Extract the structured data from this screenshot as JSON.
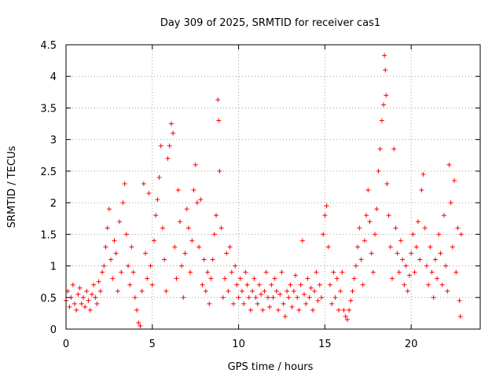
{
  "chart_data": {
    "type": "scatter",
    "title": "Day 309 of 2025, SRMTID for receiver cas1",
    "xlabel": "GPS time / hours",
    "ylabel": "SRMTID / TECUs",
    "xlim": [
      0,
      24
    ],
    "ylim": [
      0,
      4.5
    ],
    "xticks": [
      0,
      5,
      10,
      15,
      20
    ],
    "yticks": [
      0,
      0.5,
      1,
      1.5,
      2,
      2.5,
      3,
      3.5,
      4,
      4.5
    ],
    "grid": true,
    "marker": "+",
    "series": [
      {
        "name": "cas1",
        "color": "#ff0000",
        "points": [
          [
            0.0,
            0.45
          ],
          [
            0.1,
            0.6
          ],
          [
            0.2,
            0.35
          ],
          [
            0.3,
            0.5
          ],
          [
            0.4,
            0.7
          ],
          [
            0.5,
            0.4
          ],
          [
            0.6,
            0.3
          ],
          [
            0.7,
            0.55
          ],
          [
            0.8,
            0.65
          ],
          [
            0.9,
            0.4
          ],
          [
            1.0,
            0.5
          ],
          [
            1.1,
            0.35
          ],
          [
            1.2,
            0.6
          ],
          [
            1.3,
            0.45
          ],
          [
            1.4,
            0.3
          ],
          [
            1.5,
            0.55
          ],
          [
            1.6,
            0.7
          ],
          [
            1.7,
            0.5
          ],
          [
            1.8,
            0.4
          ],
          [
            1.9,
            0.75
          ],
          [
            2.0,
            0.6
          ],
          [
            2.1,
            0.9
          ],
          [
            2.2,
            1.0
          ],
          [
            2.3,
            1.3
          ],
          [
            2.4,
            1.6
          ],
          [
            2.5,
            1.9
          ],
          [
            2.6,
            1.1
          ],
          [
            2.7,
            0.8
          ],
          [
            2.8,
            1.4
          ],
          [
            2.9,
            1.2
          ],
          [
            3.0,
            0.6
          ],
          [
            3.1,
            1.7
          ],
          [
            3.2,
            0.9
          ],
          [
            3.3,
            2.0
          ],
          [
            3.4,
            2.3
          ],
          [
            3.5,
            1.5
          ],
          [
            3.6,
            1.0
          ],
          [
            3.7,
            0.7
          ],
          [
            3.8,
            1.3
          ],
          [
            3.9,
            0.9
          ],
          [
            4.0,
            0.5
          ],
          [
            4.1,
            0.3
          ],
          [
            4.2,
            0.1
          ],
          [
            4.3,
            0.05
          ],
          [
            4.4,
            0.6
          ],
          [
            4.5,
            2.3
          ],
          [
            4.6,
            1.2
          ],
          [
            4.7,
            0.8
          ],
          [
            4.8,
            2.15
          ],
          [
            4.9,
            1.0
          ],
          [
            5.0,
            0.7
          ],
          [
            5.1,
            1.4
          ],
          [
            5.2,
            1.8
          ],
          [
            5.3,
            2.05
          ],
          [
            5.4,
            2.4
          ],
          [
            5.5,
            2.9
          ],
          [
            5.6,
            1.6
          ],
          [
            5.7,
            1.1
          ],
          [
            5.8,
            0.6
          ],
          [
            5.9,
            2.7
          ],
          [
            6.0,
            2.9
          ],
          [
            6.1,
            3.25
          ],
          [
            6.2,
            3.1
          ],
          [
            6.3,
            1.3
          ],
          [
            6.4,
            0.8
          ],
          [
            6.5,
            2.2
          ],
          [
            6.6,
            1.7
          ],
          [
            6.7,
            1.0
          ],
          [
            6.8,
            0.5
          ],
          [
            6.9,
            1.2
          ],
          [
            7.0,
            1.9
          ],
          [
            7.1,
            1.6
          ],
          [
            7.2,
            0.9
          ],
          [
            7.3,
            1.4
          ],
          [
            7.4,
            2.2
          ],
          [
            7.5,
            2.6
          ],
          [
            7.6,
            2.0
          ],
          [
            7.7,
            1.3
          ],
          [
            7.8,
            2.05
          ],
          [
            7.9,
            0.7
          ],
          [
            8.0,
            1.1
          ],
          [
            8.1,
            0.6
          ],
          [
            8.2,
            0.9
          ],
          [
            8.3,
            0.4
          ],
          [
            8.4,
            0.8
          ],
          [
            8.5,
            1.1
          ],
          [
            8.6,
            1.5
          ],
          [
            8.7,
            1.8
          ],
          [
            8.8,
            3.63
          ],
          [
            8.85,
            3.3
          ],
          [
            8.9,
            2.5
          ],
          [
            9.0,
            1.6
          ],
          [
            9.1,
            0.5
          ],
          [
            9.2,
            0.8
          ],
          [
            9.3,
            1.2
          ],
          [
            9.4,
            0.6
          ],
          [
            9.5,
            1.3
          ],
          [
            9.6,
            0.9
          ],
          [
            9.7,
            0.4
          ],
          [
            9.8,
            1.0
          ],
          [
            9.9,
            0.7
          ],
          [
            10.0,
            0.5
          ],
          [
            10.1,
            0.8
          ],
          [
            10.2,
            0.6
          ],
          [
            10.3,
            0.4
          ],
          [
            10.4,
            0.9
          ],
          [
            10.5,
            0.7
          ],
          [
            10.6,
            0.5
          ],
          [
            10.7,
            0.3
          ],
          [
            10.8,
            0.6
          ],
          [
            10.9,
            0.8
          ],
          [
            11.0,
            0.5
          ],
          [
            11.1,
            0.4
          ],
          [
            11.2,
            0.7
          ],
          [
            11.3,
            0.55
          ],
          [
            11.4,
            0.3
          ],
          [
            11.5,
            0.6
          ],
          [
            11.6,
            0.9
          ],
          [
            11.7,
            0.5
          ],
          [
            11.8,
            0.35
          ],
          [
            11.9,
            0.7
          ],
          [
            12.0,
            0.5
          ],
          [
            12.1,
            0.8
          ],
          [
            12.2,
            0.6
          ],
          [
            12.3,
            0.3
          ],
          [
            12.4,
            0.55
          ],
          [
            12.5,
            0.9
          ],
          [
            12.6,
            0.4
          ],
          [
            12.7,
            0.2
          ],
          [
            12.8,
            0.6
          ],
          [
            12.9,
            0.5
          ],
          [
            13.0,
            0.7
          ],
          [
            13.1,
            0.35
          ],
          [
            13.2,
            0.6
          ],
          [
            13.3,
            0.85
          ],
          [
            13.4,
            0.5
          ],
          [
            13.5,
            0.3
          ],
          [
            13.6,
            0.7
          ],
          [
            13.7,
            1.4
          ],
          [
            13.8,
            0.55
          ],
          [
            13.9,
            0.4
          ],
          [
            14.0,
            0.8
          ],
          [
            14.1,
            0.5
          ],
          [
            14.2,
            0.65
          ],
          [
            14.3,
            0.3
          ],
          [
            14.4,
            0.6
          ],
          [
            14.5,
            0.9
          ],
          [
            14.6,
            0.45
          ],
          [
            14.7,
            0.7
          ],
          [
            14.8,
            0.5
          ],
          [
            14.9,
            1.5
          ],
          [
            15.0,
            1.8
          ],
          [
            15.1,
            1.95
          ],
          [
            15.2,
            1.3
          ],
          [
            15.3,
            0.7
          ],
          [
            15.4,
            0.4
          ],
          [
            15.5,
            0.9
          ],
          [
            15.6,
            0.5
          ],
          [
            15.7,
            0.8
          ],
          [
            15.8,
            0.3
          ],
          [
            15.9,
            0.6
          ],
          [
            16.0,
            0.9
          ],
          [
            16.1,
            0.3
          ],
          [
            16.2,
            0.2
          ],
          [
            16.3,
            0.15
          ],
          [
            16.4,
            0.3
          ],
          [
            16.5,
            0.45
          ],
          [
            16.6,
            0.6
          ],
          [
            16.7,
            0.8
          ],
          [
            16.8,
            1.0
          ],
          [
            16.9,
            1.3
          ],
          [
            17.0,
            1.6
          ],
          [
            17.1,
            1.1
          ],
          [
            17.2,
            0.7
          ],
          [
            17.3,
            1.4
          ],
          [
            17.4,
            1.8
          ],
          [
            17.5,
            2.2
          ],
          [
            17.6,
            1.7
          ],
          [
            17.7,
            1.2
          ],
          [
            17.8,
            0.9
          ],
          [
            17.9,
            1.5
          ],
          [
            18.0,
            1.9
          ],
          [
            18.1,
            2.5
          ],
          [
            18.2,
            2.85
          ],
          [
            18.3,
            3.3
          ],
          [
            18.4,
            3.55
          ],
          [
            18.45,
            4.33
          ],
          [
            18.5,
            4.1
          ],
          [
            18.55,
            3.7
          ],
          [
            18.6,
            2.3
          ],
          [
            18.7,
            1.8
          ],
          [
            18.8,
            1.3
          ],
          [
            18.9,
            0.8
          ],
          [
            19.0,
            2.85
          ],
          [
            19.1,
            1.6
          ],
          [
            19.2,
            1.2
          ],
          [
            19.3,
            0.9
          ],
          [
            19.4,
            1.4
          ],
          [
            19.5,
            1.1
          ],
          [
            19.6,
            0.7
          ],
          [
            19.7,
            1.0
          ],
          [
            19.8,
            0.6
          ],
          [
            19.9,
            0.85
          ],
          [
            20.0,
            1.2
          ],
          [
            20.1,
            1.5
          ],
          [
            20.2,
            0.9
          ],
          [
            20.3,
            1.3
          ],
          [
            20.4,
            1.7
          ],
          [
            20.5,
            1.1
          ],
          [
            20.6,
            2.2
          ],
          [
            20.7,
            2.45
          ],
          [
            20.8,
            1.6
          ],
          [
            20.9,
            1.0
          ],
          [
            21.0,
            0.7
          ],
          [
            21.1,
            1.3
          ],
          [
            21.2,
            0.9
          ],
          [
            21.3,
            0.5
          ],
          [
            21.4,
            1.1
          ],
          [
            21.5,
            0.8
          ],
          [
            21.6,
            1.5
          ],
          [
            21.7,
            1.2
          ],
          [
            21.8,
            0.7
          ],
          [
            21.9,
            1.8
          ],
          [
            22.0,
            1.0
          ],
          [
            22.1,
            0.6
          ],
          [
            22.2,
            2.6
          ],
          [
            22.3,
            2.0
          ],
          [
            22.4,
            1.3
          ],
          [
            22.5,
            2.35
          ],
          [
            22.6,
            0.9
          ],
          [
            22.7,
            1.6
          ],
          [
            22.8,
            0.45
          ],
          [
            22.85,
            0.2
          ],
          [
            22.9,
            1.5
          ]
        ]
      }
    ]
  }
}
